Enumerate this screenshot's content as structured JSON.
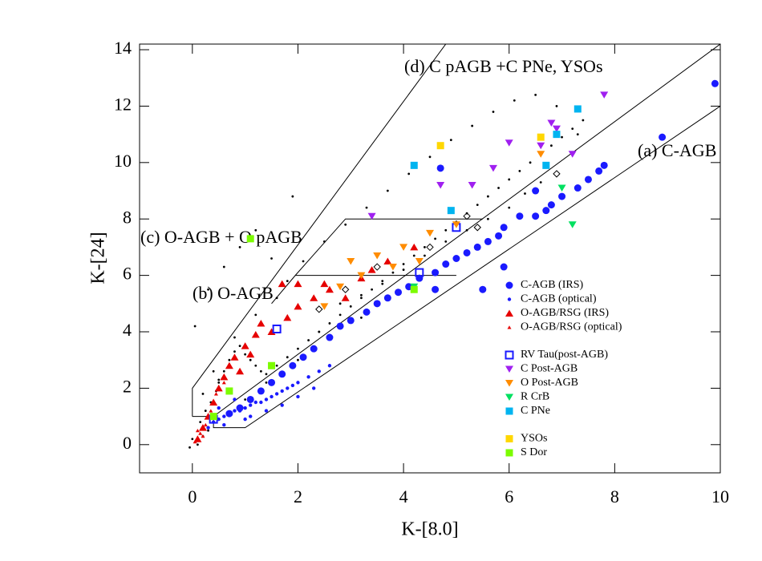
{
  "chart_data": {
    "type": "scatter",
    "xlabel": "K-[8.0]",
    "ylabel": "K-[24]",
    "xlim": [
      -1,
      10
    ],
    "ylim": [
      -1,
      14.2
    ],
    "xticks": [
      0,
      2,
      4,
      6,
      8,
      10
    ],
    "yticks": [
      0,
      2,
      4,
      6,
      8,
      10,
      12,
      14
    ],
    "annotations": [
      "(d) C pAGB +C PNe, YSOs",
      "(a) C-AGB",
      "(c) O-AGB + O pAGB",
      "(b) O-AGB"
    ],
    "boundaries": [
      {
        "x": [
          0,
          0,
          4.8
        ],
        "y": [
          1,
          2,
          14.2
        ]
      },
      {
        "x": [
          0,
          0.4,
          10
        ],
        "y": [
          1,
          1,
          14.2
        ]
      },
      {
        "x": [
          0.4,
          0.4,
          1.0,
          10
        ],
        "y": [
          1,
          0.6,
          0.6,
          12
        ]
      },
      {
        "x": [
          1.5,
          1.95,
          2.9,
          5.5
        ],
        "y": [
          5.0,
          6,
          8,
          8
        ]
      },
      {
        "x": [
          1.95,
          5.0
        ],
        "y": [
          6,
          6
        ]
      }
    ],
    "legend": "right",
    "series": [
      {
        "color": "#000000",
        "marker": "tiny",
        "x": [
          0.1,
          0.2,
          0.3,
          0.15,
          0.25,
          0.35,
          0.45,
          0.5,
          0.6,
          0.7,
          0.8,
          0.9,
          1.0,
          1.1,
          1.2,
          1.3,
          1.4,
          1.6,
          1.8,
          2.0,
          2.2,
          2.4,
          2.6,
          2.8,
          3.0,
          3.2,
          3.4,
          3.6,
          3.8,
          4.0,
          4.2,
          4.4,
          4.6,
          4.8,
          5.0,
          5.2,
          5.4,
          5.6,
          5.8,
          6.0,
          6.2,
          6.4,
          6.6,
          6.8,
          7.0,
          7.2,
          7.4,
          0.05,
          0.3,
          0.6,
          0.9,
          1.2,
          1.5,
          1.8,
          2.1,
          2.5,
          2.9,
          3.3,
          3.7,
          4.1,
          4.5,
          4.9,
          5.3,
          5.7,
          6.1,
          6.5,
          6.9,
          7.3,
          1.0,
          1.4,
          2.0,
          2.6,
          3.2,
          0.4,
          0.8,
          1.2,
          1.6,
          2.0,
          2.4,
          2.8,
          3.2,
          3.6,
          4.0,
          4.4,
          4.8,
          5.2,
          5.6,
          6.0,
          6.3,
          6.6,
          0.2,
          0.5,
          1.9,
          -0.05,
          0.0
        ],
        "y": [
          0.0,
          0.3,
          0.5,
          0.8,
          1.2,
          1.5,
          1.9,
          2.3,
          2.6,
          3.0,
          3.3,
          3.5,
          3.2,
          3.0,
          2.8,
          2.6,
          2.5,
          2.8,
          3.1,
          3.4,
          3.7,
          4.0,
          4.3,
          4.6,
          4.9,
          5.2,
          5.5,
          5.8,
          6.1,
          6.4,
          6.7,
          7.0,
          7.3,
          7.6,
          7.9,
          8.2,
          8.5,
          8.8,
          9.1,
          9.4,
          9.7,
          10.0,
          10.3,
          10.6,
          10.9,
          11.2,
          11.5,
          4.2,
          5.5,
          6.3,
          7.0,
          7.6,
          6.6,
          5.8,
          6.5,
          7.2,
          7.8,
          8.4,
          9.0,
          9.6,
          10.2,
          10.8,
          11.3,
          11.8,
          12.2,
          12.4,
          12.0,
          11.0,
          1.6,
          2.2,
          3.0,
          3.8,
          4.5,
          2.6,
          3.8,
          4.6,
          5.2,
          4.9,
          4.0,
          5.0,
          5.3,
          5.7,
          6.2,
          6.7,
          7.2,
          7.6,
          8.0,
          8.4,
          8.9,
          9.3,
          1.8,
          2.2,
          8.8,
          -0.1,
          0.2
        ]
      },
      {
        "color": "#000000",
        "marker": "open-diamond",
        "x": [
          4.5,
          5.2,
          6.9,
          3.5,
          2.9,
          2.4,
          5.4
        ],
        "y": [
          7.0,
          8.1,
          9.6,
          6.3,
          5.5,
          4.8,
          7.7
        ]
      },
      {
        "name": "C-AGB (IRS)",
        "color": "#1a1aff",
        "marker": "circle",
        "x": [
          9.9,
          8.9,
          7.8,
          7.7,
          7.5,
          7.3,
          7.0,
          6.8,
          6.7,
          6.5,
          6.2,
          5.9,
          5.8,
          5.6,
          5.4,
          5.2,
          5.0,
          4.8,
          4.6,
          4.3,
          4.1,
          3.9,
          3.7,
          3.5,
          3.3,
          3.0,
          2.8,
          2.6,
          2.3,
          2.1,
          1.9,
          1.7,
          1.5,
          1.3,
          1.1,
          0.9,
          0.7,
          4.7,
          6.5,
          5.5,
          4.6,
          5.9
        ],
        "y": [
          12.8,
          10.9,
          9.9,
          9.7,
          9.4,
          9.1,
          8.8,
          8.5,
          8.3,
          8.1,
          8.1,
          7.7,
          7.4,
          7.2,
          7.0,
          6.8,
          6.6,
          6.4,
          6.1,
          5.9,
          5.6,
          5.4,
          5.2,
          5.0,
          4.7,
          4.4,
          4.2,
          3.8,
          3.4,
          3.1,
          2.8,
          2.5,
          2.2,
          1.9,
          1.6,
          1.3,
          1.1,
          9.8,
          9.0,
          5.5,
          5.5,
          6.3
        ]
      },
      {
        "name": "C-AGB (optical)",
        "color": "#1a1aff",
        "marker": "dot",
        "x": [
          0.3,
          0.4,
          0.5,
          0.6,
          0.7,
          0.8,
          0.9,
          1.0,
          1.1,
          1.2,
          1.3,
          1.4,
          1.5,
          1.6,
          1.7,
          1.8,
          1.9,
          2.0,
          2.2,
          2.4,
          2.6,
          0.5,
          0.8,
          1.1,
          1.4,
          1.7,
          2.0,
          2.3,
          0.6,
          1.0
        ],
        "y": [
          0.6,
          0.8,
          0.9,
          1.0,
          1.1,
          1.2,
          1.2,
          1.3,
          1.4,
          1.5,
          1.5,
          1.6,
          1.7,
          1.8,
          1.9,
          2.0,
          2.1,
          2.2,
          2.4,
          2.6,
          2.8,
          1.3,
          1.6,
          1.0,
          1.2,
          1.4,
          1.7,
          2.0,
          0.7,
          0.9
        ]
      },
      {
        "name": "O-AGB/RSG (IRS)",
        "color": "#e60000",
        "marker": "triangle",
        "x": [
          0.1,
          0.2,
          0.3,
          0.4,
          0.5,
          0.6,
          0.7,
          0.8,
          1.0,
          1.2,
          1.3,
          1.5,
          1.8,
          2.0,
          2.3,
          2.6,
          2.9,
          3.2,
          3.4,
          3.7,
          4.2,
          1.7,
          2.0,
          2.5,
          1.1,
          0.9
        ],
        "y": [
          0.2,
          0.6,
          1.0,
          1.5,
          2.0,
          2.4,
          2.8,
          3.1,
          3.5,
          3.9,
          4.3,
          4.0,
          4.5,
          4.9,
          5.2,
          5.5,
          5.2,
          5.9,
          6.2,
          6.5,
          7.0,
          5.7,
          5.7,
          5.7,
          3.2,
          2.6
        ]
      },
      {
        "name": "O-AGB/RSG (optical)",
        "color": "#e60000",
        "marker": "small-triangle",
        "x": [
          0.05,
          0.15,
          0.25,
          0.35,
          0.45,
          0.6,
          0.2,
          0.1
        ],
        "y": [
          0.1,
          0.4,
          0.7,
          1.2,
          1.8,
          2.2,
          0.3,
          0.5
        ]
      },
      {
        "name": "RV Tau(post-AGB)",
        "color": "#1a1aff",
        "marker": "open-square",
        "x": [
          0.4,
          5.0,
          4.3,
          1.6
        ],
        "y": [
          0.9,
          7.7,
          6.1,
          4.1
        ]
      },
      {
        "name": "C Post-AGB",
        "color": "#a020f0",
        "marker": "down-triangle",
        "x": [
          3.4,
          4.7,
          5.3,
          6.0,
          6.6,
          6.9,
          7.2,
          7.8,
          5.7,
          6.8
        ],
        "y": [
          8.1,
          9.2,
          9.2,
          10.7,
          10.6,
          11.2,
          10.3,
          12.4,
          9.8,
          11.4
        ]
      },
      {
        "name": "O Post-AGB",
        "color": "#ff8c00",
        "marker": "down-triangle",
        "x": [
          2.5,
          3.0,
          3.5,
          4.0,
          4.5,
          5.0,
          6.6,
          3.8,
          2.8,
          3.2,
          4.3
        ],
        "y": [
          4.9,
          6.5,
          6.7,
          7.0,
          7.5,
          7.8,
          10.3,
          6.3,
          5.6,
          6.0,
          6.5
        ]
      },
      {
        "name": "R CrB",
        "color": "#00e060",
        "marker": "down-triangle",
        "x": [
          7.2,
          7.0,
          4.2
        ],
        "y": [
          7.8,
          9.1,
          5.6
        ]
      },
      {
        "name": "C PNe",
        "color": "#00b4f0",
        "marker": "square",
        "x": [
          4.2,
          4.9,
          6.7,
          7.3,
          6.9
        ],
        "y": [
          9.9,
          8.3,
          9.9,
          11.9,
          11.0
        ]
      },
      {
        "name": "YSOs",
        "color": "#ffd700",
        "marker": "square",
        "x": [
          4.7,
          6.6
        ],
        "y": [
          10.6,
          10.9
        ]
      },
      {
        "name": "S Dor",
        "color": "#7cfc00",
        "marker": "square",
        "x": [
          1.1,
          0.7,
          4.2,
          1.5,
          0.4
        ],
        "y": [
          7.3,
          1.9,
          5.5,
          2.8,
          1.0
        ]
      }
    ]
  }
}
